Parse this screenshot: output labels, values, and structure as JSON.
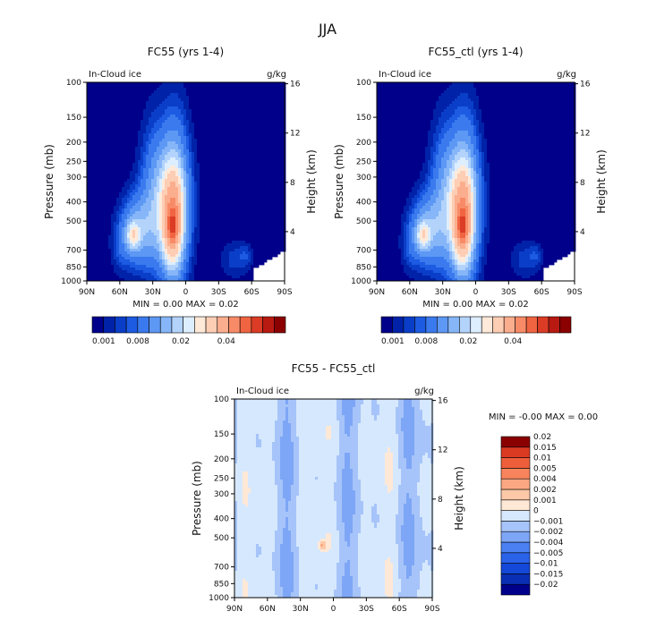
{
  "suptitle": "JJA",
  "colors": {
    "background": "#FFFFFF",
    "axes": "#000000",
    "text": "#111111"
  },
  "chart_data": [
    {
      "type": "heatmap",
      "title": "FC55 (yrs 1-4)",
      "left_label": "In-Cloud ice",
      "right_label": "g/kg",
      "ylabel": "Pressure (mb)",
      "ylabel_right": "Height (km)",
      "x_ticks": [
        "90N",
        "60N",
        "30N",
        "0",
        "30S",
        "60S",
        "90S"
      ],
      "y_ticks": [
        100,
        150,
        200,
        250,
        300,
        400,
        500,
        700,
        850,
        1000
      ],
      "y_ticks_right": [
        16,
        12,
        8,
        4
      ],
      "ylim": [
        1000,
        100
      ],
      "yscale": "log",
      "stats_text": "MIN =    0.00    MAX =    0.02",
      "min": 0.0,
      "max": 0.02,
      "colorbar": {
        "orientation": "horizontal",
        "colors": [
          "#00008B",
          "#0022A8",
          "#0A3EC8",
          "#1C5BE2",
          "#3A7AEE",
          "#5D98F4",
          "#86B6F8",
          "#B3D3FB",
          "#DDEEFE",
          "#FFE9D9",
          "#FDCDB4",
          "#FBAE8E",
          "#F88B67",
          "#F06441",
          "#DC3C25",
          "#B81A12",
          "#8B0000"
        ],
        "tick_labels": [
          "0.001",
          "0.008",
          "0.02",
          "0.04"
        ]
      },
      "blobs": [
        {
          "lat": 18,
          "p": 420,
          "rlat": 20,
          "rp": 0.7,
          "v": 0.007
        },
        {
          "lat": 10,
          "p": 380,
          "rlat": 13,
          "rp": 0.95,
          "v": 0.009
        },
        {
          "lat": 12,
          "p": 510,
          "rlat": 9,
          "rp": 0.5,
          "v": 0.014
        },
        {
          "lat": 12,
          "p": 530,
          "rlat": 4,
          "rp": 0.16,
          "v": 0.012
        },
        {
          "lat": 45,
          "p": 560,
          "rlat": 15,
          "rp": 0.4,
          "v": 0.008
        },
        {
          "lat": 48,
          "p": 590,
          "rlat": 6,
          "rp": 0.16,
          "v": 0.008
        },
        {
          "lat": 30,
          "p": 330,
          "rlat": 12,
          "rp": 0.9,
          "v": 0.003
        },
        {
          "lat": 60,
          "p": 680,
          "rlat": 8,
          "rp": 0.3,
          "v": 0.002
        },
        {
          "lat": -45,
          "p": 780,
          "rlat": 14,
          "rp": 0.22,
          "v": 0.0025
        },
        {
          "lat": -55,
          "p": 740,
          "rlat": 6,
          "rp": 0.12,
          "v": 0.0018
        }
      ]
    },
    {
      "type": "heatmap",
      "title": "FC55_ctl (yrs 1-4)",
      "left_label": "In-Cloud ice",
      "right_label": "g/kg",
      "ylabel": "Pressure (mb)",
      "ylabel_right": "Height (km)",
      "x_ticks": [
        "90N",
        "60N",
        "30N",
        "0",
        "30S",
        "60S",
        "90S"
      ],
      "y_ticks": [
        100,
        150,
        200,
        250,
        300,
        400,
        500,
        700,
        850,
        1000
      ],
      "y_ticks_right": [
        16,
        12,
        8,
        4
      ],
      "ylim": [
        1000,
        100
      ],
      "yscale": "log",
      "stats_text": "MIN =    0.00    MAX =    0.02",
      "min": 0.0,
      "max": 0.02,
      "colorbar": {
        "orientation": "horizontal",
        "colors": [
          "#00008B",
          "#0022A8",
          "#0A3EC8",
          "#1C5BE2",
          "#3A7AEE",
          "#5D98F4",
          "#86B6F8",
          "#B3D3FB",
          "#DDEEFE",
          "#FFE9D9",
          "#FDCDB4",
          "#FBAE8E",
          "#F88B67",
          "#F06441",
          "#DC3C25",
          "#B81A12",
          "#8B0000"
        ],
        "tick_labels": [
          "0.001",
          "0.008",
          "0.02",
          "0.04"
        ]
      },
      "blobs": [
        {
          "lat": 18,
          "p": 420,
          "rlat": 20,
          "rp": 0.7,
          "v": 0.007
        },
        {
          "lat": 10,
          "p": 380,
          "rlat": 13,
          "rp": 0.95,
          "v": 0.009
        },
        {
          "lat": 12,
          "p": 510,
          "rlat": 9,
          "rp": 0.5,
          "v": 0.014
        },
        {
          "lat": 12,
          "p": 530,
          "rlat": 4,
          "rp": 0.16,
          "v": 0.012
        },
        {
          "lat": 45,
          "p": 560,
          "rlat": 15,
          "rp": 0.4,
          "v": 0.008
        },
        {
          "lat": 48,
          "p": 590,
          "rlat": 6,
          "rp": 0.16,
          "v": 0.008
        },
        {
          "lat": 30,
          "p": 330,
          "rlat": 12,
          "rp": 0.9,
          "v": 0.003
        },
        {
          "lat": 60,
          "p": 680,
          "rlat": 8,
          "rp": 0.3,
          "v": 0.002
        },
        {
          "lat": -45,
          "p": 780,
          "rlat": 14,
          "rp": 0.22,
          "v": 0.0025
        },
        {
          "lat": -55,
          "p": 740,
          "rlat": 6,
          "rp": 0.12,
          "v": 0.0018
        }
      ]
    },
    {
      "type": "heatmap",
      "title": "FC55 - FC55_ctl",
      "left_label": "In-Cloud ice",
      "right_label": "g/kg",
      "ylabel": "Pressure (mb)",
      "ylabel_right": "Height (km)",
      "x_ticks": [
        "90N",
        "60N",
        "30N",
        "0",
        "30S",
        "60S",
        "90S"
      ],
      "y_ticks": [
        100,
        150,
        200,
        250,
        300,
        400,
        500,
        700,
        850,
        1000
      ],
      "y_ticks_right": [
        16,
        12,
        8,
        4
      ],
      "ylim": [
        1000,
        100
      ],
      "yscale": "log",
      "stats_text": "MIN =    -0.00    MAX =     0.00",
      "min": -0.0,
      "max": 0.0,
      "colorbar": {
        "orientation": "vertical",
        "colors": [
          "#00008B",
          "#0A2EB4",
          "#1448D8",
          "#2A62EA",
          "#4A80F2",
          "#7EA6F6",
          "#A6C4F9",
          "#D6E8FD",
          "#FFE8D6",
          "#FDC8A8",
          "#FBA882",
          "#F7845C",
          "#EE5E3A",
          "#DA3A22",
          "#8B0000"
        ],
        "tick_labels": [
          "-0.02",
          "-0.015",
          "-0.01",
          "-0.005",
          "-0.004",
          "-0.002",
          "-0.001",
          "0",
          "0.001",
          "0.002",
          "0.004",
          "0.005",
          "0.01",
          "0.015",
          "0.02"
        ]
      },
      "pattern": "alternating vertical bands of slightly positive and slightly negative differences with a small positive spot near 10N, 550 mb"
    }
  ]
}
